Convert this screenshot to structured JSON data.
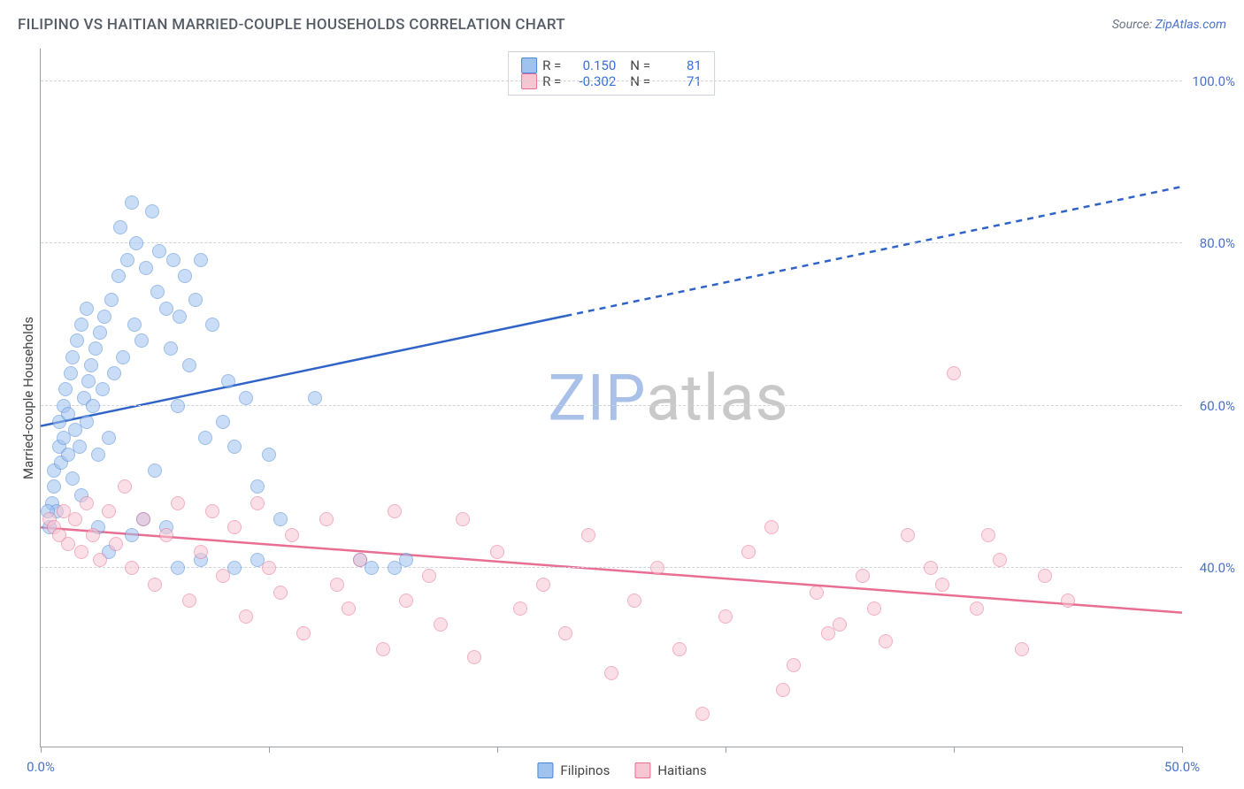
{
  "title": "FILIPINO VS HAITIAN MARRIED-COUPLE HOUSEHOLDS CORRELATION CHART",
  "source_label": "Source:",
  "source_link_text": "ZipAtlas.com",
  "y_axis_label": "Married-couple Households",
  "watermark": {
    "a": "ZIP",
    "b": "atlas",
    "color_a": "#a9c1e8",
    "color_b": "#c9c9c9"
  },
  "chart": {
    "type": "scatter",
    "background": "#ffffff",
    "xlim": [
      0,
      50
    ],
    "ylim": [
      18,
      104
    ],
    "x_ticks": [
      0,
      10,
      20,
      30,
      40,
      50
    ],
    "x_tick_labels": {
      "0": "0.0%",
      "50": "50.0%"
    },
    "y_ticks": [
      40,
      60,
      80,
      100
    ],
    "y_tick_labels": {
      "40": "40.0%",
      "60": "60.0%",
      "80": "80.0%",
      "100": "100.0%"
    },
    "grid_color": "#d0d4da",
    "axis_color": "#9aa0a6",
    "marker_radius": 8,
    "marker_opacity": 0.55,
    "series": [
      {
        "name": "Filipinos",
        "fill": "#9fc3ef",
        "stroke": "#4a86d6",
        "trend": {
          "color": "#2f63c8",
          "width": 2.5,
          "y_at_xmin": 57.5,
          "y_at_xmax": 87.0,
          "solid_until_x": 23,
          "dash": "7 6"
        },
        "R": "0.150",
        "N": "81",
        "points": [
          [
            0.4,
            45
          ],
          [
            0.5,
            48
          ],
          [
            0.6,
            50
          ],
          [
            0.6,
            52
          ],
          [
            0.7,
            47
          ],
          [
            0.8,
            55
          ],
          [
            0.8,
            58
          ],
          [
            0.9,
            53
          ],
          [
            1.0,
            60
          ],
          [
            1.0,
            56
          ],
          [
            1.1,
            62
          ],
          [
            1.2,
            54
          ],
          [
            1.2,
            59
          ],
          [
            1.3,
            64
          ],
          [
            1.4,
            51
          ],
          [
            1.4,
            66
          ],
          [
            1.5,
            57
          ],
          [
            1.6,
            68
          ],
          [
            1.7,
            55
          ],
          [
            1.8,
            70
          ],
          [
            1.8,
            49
          ],
          [
            1.9,
            61
          ],
          [
            2.0,
            72
          ],
          [
            2.0,
            58
          ],
          [
            2.1,
            63
          ],
          [
            2.2,
            65
          ],
          [
            2.3,
            60
          ],
          [
            2.4,
            67
          ],
          [
            2.5,
            54
          ],
          [
            2.6,
            69
          ],
          [
            2.7,
            62
          ],
          [
            2.8,
            71
          ],
          [
            3.0,
            56
          ],
          [
            3.1,
            73
          ],
          [
            3.2,
            64
          ],
          [
            3.4,
            76
          ],
          [
            3.5,
            82
          ],
          [
            3.6,
            66
          ],
          [
            3.8,
            78
          ],
          [
            4.0,
            85
          ],
          [
            4.1,
            70
          ],
          [
            4.2,
            80
          ],
          [
            4.4,
            68
          ],
          [
            4.6,
            77
          ],
          [
            4.9,
            84
          ],
          [
            5.0,
            52
          ],
          [
            5.1,
            74
          ],
          [
            5.2,
            79
          ],
          [
            5.5,
            72
          ],
          [
            5.7,
            67
          ],
          [
            5.8,
            78
          ],
          [
            6.0,
            60
          ],
          [
            6.1,
            71
          ],
          [
            6.3,
            76
          ],
          [
            6.5,
            65
          ],
          [
            6.8,
            73
          ],
          [
            7.0,
            78
          ],
          [
            7.2,
            56
          ],
          [
            7.5,
            70
          ],
          [
            8.0,
            58
          ],
          [
            8.2,
            63
          ],
          [
            8.5,
            55
          ],
          [
            9.0,
            61
          ],
          [
            9.5,
            50
          ],
          [
            10.0,
            54
          ],
          [
            10.5,
            46
          ],
          [
            6.0,
            40
          ],
          [
            7.0,
            41
          ],
          [
            8.5,
            40
          ],
          [
            9.5,
            41
          ],
          [
            3.0,
            42
          ],
          [
            2.5,
            45
          ],
          [
            4.0,
            44
          ],
          [
            4.5,
            46
          ],
          [
            5.5,
            45
          ],
          [
            12.0,
            61
          ],
          [
            14.0,
            41
          ],
          [
            14.5,
            40
          ],
          [
            15.5,
            40
          ],
          [
            16.0,
            41
          ],
          [
            0.3,
            47
          ]
        ]
      },
      {
        "name": "Haitians",
        "fill": "#f7c6d2",
        "stroke": "#e86f93",
        "trend": {
          "color": "#e86f93",
          "width": 2.5,
          "y_at_xmin": 45.0,
          "y_at_xmax": 34.5,
          "solid_until_x": 50,
          "dash": ""
        },
        "R": "-0.302",
        "N": "71",
        "points": [
          [
            0.4,
            46
          ],
          [
            0.6,
            45
          ],
          [
            0.8,
            44
          ],
          [
            1.0,
            47
          ],
          [
            1.2,
            43
          ],
          [
            1.5,
            46
          ],
          [
            1.8,
            42
          ],
          [
            2.0,
            48
          ],
          [
            2.3,
            44
          ],
          [
            2.6,
            41
          ],
          [
            3.0,
            47
          ],
          [
            3.3,
            43
          ],
          [
            3.7,
            50
          ],
          [
            4.0,
            40
          ],
          [
            4.5,
            46
          ],
          [
            5.0,
            38
          ],
          [
            5.5,
            44
          ],
          [
            6.0,
            48
          ],
          [
            6.5,
            36
          ],
          [
            7.0,
            42
          ],
          [
            7.5,
            47
          ],
          [
            8.0,
            39
          ],
          [
            8.5,
            45
          ],
          [
            9.0,
            34
          ],
          [
            9.5,
            48
          ],
          [
            10.0,
            40
          ],
          [
            10.5,
            37
          ],
          [
            11.0,
            44
          ],
          [
            11.5,
            32
          ],
          [
            12.5,
            46
          ],
          [
            13.0,
            38
          ],
          [
            13.5,
            35
          ],
          [
            14.0,
            41
          ],
          [
            15.0,
            30
          ],
          [
            15.5,
            47
          ],
          [
            16.0,
            36
          ],
          [
            17.0,
            39
          ],
          [
            17.5,
            33
          ],
          [
            18.5,
            46
          ],
          [
            19.0,
            29
          ],
          [
            20.0,
            42
          ],
          [
            21.0,
            35
          ],
          [
            22.0,
            38
          ],
          [
            23.0,
            32
          ],
          [
            24.0,
            44
          ],
          [
            25.0,
            27
          ],
          [
            26.0,
            36
          ],
          [
            27.0,
            40
          ],
          [
            28.0,
            30
          ],
          [
            29.0,
            22
          ],
          [
            30.0,
            34
          ],
          [
            31.0,
            42
          ],
          [
            32.0,
            45
          ],
          [
            33.0,
            28
          ],
          [
            34.0,
            37
          ],
          [
            32.5,
            25
          ],
          [
            35.0,
            33
          ],
          [
            36.0,
            39
          ],
          [
            37.0,
            31
          ],
          [
            38.0,
            44
          ],
          [
            39.5,
            38
          ],
          [
            40.0,
            64
          ],
          [
            41.0,
            35
          ],
          [
            42.0,
            41
          ],
          [
            43.0,
            30
          ],
          [
            44.0,
            39
          ],
          [
            45.0,
            36
          ],
          [
            41.5,
            44
          ],
          [
            39.0,
            40
          ],
          [
            36.5,
            35
          ],
          [
            34.5,
            32
          ]
        ]
      }
    ]
  },
  "bottom_legend": [
    {
      "label": "Filipinos",
      "fill": "#9fc3ef",
      "stroke": "#4a86d6"
    },
    {
      "label": "Haitians",
      "fill": "#f7c6d2",
      "stroke": "#e86f93"
    }
  ]
}
